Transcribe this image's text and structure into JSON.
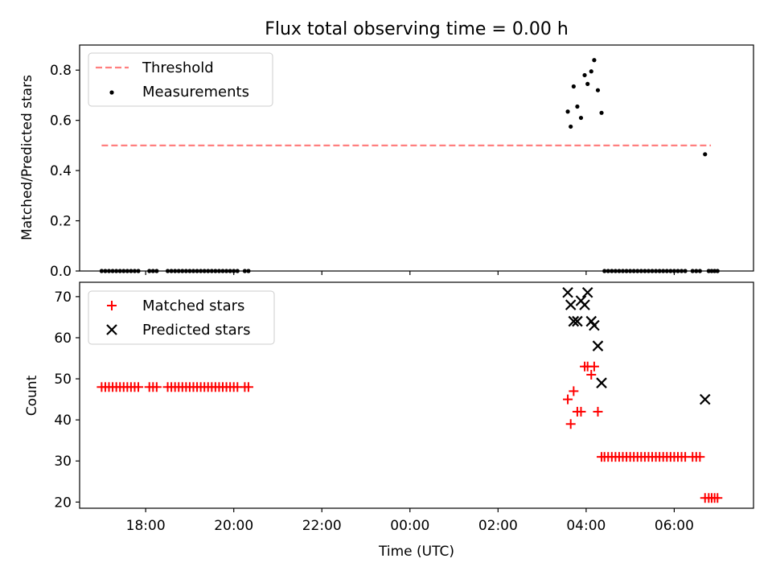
{
  "chart_data": [
    {
      "panel": "top",
      "type": "scatter",
      "title": "Flux total observing time = 0.00 h",
      "xlabel": "",
      "ylabel": "Matched/Predicted stars",
      "xlim": [
        "2024-01-01T16:30",
        "2024-01-02T07:48"
      ],
      "ylim": [
        0.0,
        0.9
      ],
      "yticks": [
        "0.0",
        "0.2",
        "0.4",
        "0.6",
        "0.8"
      ],
      "xticks": [],
      "legend": "upper-left",
      "grid": false,
      "series": [
        {
          "name": "Threshold",
          "kind": "dashed-line",
          "color": "#ff7f7f",
          "x": [
            "2024-01-01T17:00",
            "2024-01-02T06:50"
          ],
          "y": [
            0.5,
            0.5
          ]
        },
        {
          "name": "Measurements",
          "kind": "dots",
          "color": "#000000",
          "x": [
            "2024-01-01T17:00",
            "2024-01-01T17:05",
            "2024-01-01T17:10",
            "2024-01-01T17:15",
            "2024-01-01T17:20",
            "2024-01-01T17:25",
            "2024-01-01T17:30",
            "2024-01-01T17:35",
            "2024-01-01T17:40",
            "2024-01-01T17:45",
            "2024-01-01T17:50",
            "2024-01-01T18:05",
            "2024-01-01T18:10",
            "2024-01-01T18:15",
            "2024-01-01T18:30",
            "2024-01-01T18:35",
            "2024-01-01T18:40",
            "2024-01-01T18:45",
            "2024-01-01T18:50",
            "2024-01-01T18:55",
            "2024-01-01T19:00",
            "2024-01-01T19:05",
            "2024-01-01T19:10",
            "2024-01-01T19:15",
            "2024-01-01T19:20",
            "2024-01-01T19:25",
            "2024-01-01T19:30",
            "2024-01-01T19:35",
            "2024-01-01T19:40",
            "2024-01-01T19:45",
            "2024-01-01T19:50",
            "2024-01-01T19:55",
            "2024-01-01T20:00",
            "2024-01-01T20:05",
            "2024-01-01T20:15",
            "2024-01-01T20:20",
            "2024-01-02T03:35",
            "2024-01-02T03:39",
            "2024-01-02T03:43",
            "2024-01-02T03:48",
            "2024-01-02T03:53",
            "2024-01-02T03:58",
            "2024-01-02T04:02",
            "2024-01-02T04:07",
            "2024-01-02T04:11",
            "2024-01-02T04:16",
            "2024-01-02T04:21",
            "2024-01-02T04:25",
            "2024-01-02T04:30",
            "2024-01-02T04:35",
            "2024-01-02T04:40",
            "2024-01-02T04:45",
            "2024-01-02T04:50",
            "2024-01-02T04:55",
            "2024-01-02T05:00",
            "2024-01-02T05:05",
            "2024-01-02T05:10",
            "2024-01-02T05:15",
            "2024-01-02T05:20",
            "2024-01-02T05:25",
            "2024-01-02T05:30",
            "2024-01-02T05:35",
            "2024-01-02T05:40",
            "2024-01-02T05:45",
            "2024-01-02T05:50",
            "2024-01-02T05:55",
            "2024-01-02T06:00",
            "2024-01-02T06:05",
            "2024-01-02T06:10",
            "2024-01-02T06:15",
            "2024-01-02T06:25",
            "2024-01-02T06:30",
            "2024-01-02T06:35",
            "2024-01-02T06:42",
            "2024-01-02T06:47",
            "2024-01-02T06:51",
            "2024-01-02T06:55",
            "2024-01-02T06:59"
          ],
          "y": [
            0,
            0,
            0,
            0,
            0,
            0,
            0,
            0,
            0,
            0,
            0,
            0,
            0,
            0,
            0,
            0,
            0,
            0,
            0,
            0,
            0,
            0,
            0,
            0,
            0,
            0,
            0,
            0,
            0,
            0,
            0,
            0,
            0,
            0,
            0,
            0,
            0.635,
            0.575,
            0.735,
            0.655,
            0.61,
            0.78,
            0.745,
            0.795,
            0.84,
            0.72,
            0.63,
            0,
            0,
            0,
            0,
            0,
            0,
            0,
            0,
            0,
            0,
            0,
            0,
            0,
            0,
            0,
            0,
            0,
            0,
            0,
            0,
            0,
            0,
            0,
            0,
            0,
            0,
            0.465,
            0,
            0,
            0,
            0
          ]
        }
      ]
    },
    {
      "panel": "bottom",
      "type": "scatter",
      "title": "",
      "xlabel": "Time (UTC)",
      "ylabel": "Count",
      "xlim": [
        "2024-01-01T16:30",
        "2024-01-02T07:48"
      ],
      "ylim": [
        18.5,
        73.5
      ],
      "yticks": [
        "20",
        "30",
        "40",
        "50",
        "60",
        "70"
      ],
      "xticks": [
        "18:00",
        "20:00",
        "22:00",
        "00:00",
        "02:00",
        "04:00",
        "06:00"
      ],
      "legend": "upper-left",
      "grid": false,
      "series": [
        {
          "name": "Matched stars",
          "kind": "plus",
          "color": "#ff0000",
          "x": [
            "2024-01-01T17:00",
            "2024-01-01T17:05",
            "2024-01-01T17:10",
            "2024-01-01T17:15",
            "2024-01-01T17:20",
            "2024-01-01T17:25",
            "2024-01-01T17:30",
            "2024-01-01T17:35",
            "2024-01-01T17:40",
            "2024-01-01T17:45",
            "2024-01-01T17:50",
            "2024-01-01T18:05",
            "2024-01-01T18:10",
            "2024-01-01T18:15",
            "2024-01-01T18:30",
            "2024-01-01T18:35",
            "2024-01-01T18:40",
            "2024-01-01T18:45",
            "2024-01-01T18:50",
            "2024-01-01T18:55",
            "2024-01-01T19:00",
            "2024-01-01T19:05",
            "2024-01-01T19:10",
            "2024-01-01T19:15",
            "2024-01-01T19:20",
            "2024-01-01T19:25",
            "2024-01-01T19:30",
            "2024-01-01T19:35",
            "2024-01-01T19:40",
            "2024-01-01T19:45",
            "2024-01-01T19:50",
            "2024-01-01T19:55",
            "2024-01-01T20:00",
            "2024-01-01T20:05",
            "2024-01-01T20:15",
            "2024-01-01T20:20",
            "2024-01-02T03:35",
            "2024-01-02T03:39",
            "2024-01-02T03:43",
            "2024-01-02T03:48",
            "2024-01-02T03:53",
            "2024-01-02T03:58",
            "2024-01-02T04:02",
            "2024-01-02T04:07",
            "2024-01-02T04:11",
            "2024-01-02T04:16",
            "2024-01-02T04:21",
            "2024-01-02T04:25",
            "2024-01-02T04:30",
            "2024-01-02T04:35",
            "2024-01-02T04:40",
            "2024-01-02T04:45",
            "2024-01-02T04:50",
            "2024-01-02T04:55",
            "2024-01-02T05:00",
            "2024-01-02T05:05",
            "2024-01-02T05:10",
            "2024-01-02T05:15",
            "2024-01-02T05:20",
            "2024-01-02T05:25",
            "2024-01-02T05:30",
            "2024-01-02T05:35",
            "2024-01-02T05:40",
            "2024-01-02T05:45",
            "2024-01-02T05:50",
            "2024-01-02T05:55",
            "2024-01-02T06:00",
            "2024-01-02T06:05",
            "2024-01-02T06:10",
            "2024-01-02T06:15",
            "2024-01-02T06:25",
            "2024-01-02T06:30",
            "2024-01-02T06:35",
            "2024-01-02T06:42",
            "2024-01-02T06:47",
            "2024-01-02T06:51",
            "2024-01-02T06:55",
            "2024-01-02T06:59"
          ],
          "y": [
            48,
            48,
            48,
            48,
            48,
            48,
            48,
            48,
            48,
            48,
            48,
            48,
            48,
            48,
            48,
            48,
            48,
            48,
            48,
            48,
            48,
            48,
            48,
            48,
            48,
            48,
            48,
            48,
            48,
            48,
            48,
            48,
            48,
            48,
            48,
            48,
            45,
            39,
            47,
            42,
            42,
            53,
            53,
            51,
            53,
            42,
            31,
            31,
            31,
            31,
            31,
            31,
            31,
            31,
            31,
            31,
            31,
            31,
            31,
            31,
            31,
            31,
            31,
            31,
            31,
            31,
            31,
            31,
            31,
            31,
            31,
            31,
            31,
            21,
            21,
            21,
            21,
            21
          ]
        },
        {
          "name": "Predicted stars",
          "kind": "cross",
          "color": "#000000",
          "x": [
            "2024-01-02T03:35",
            "2024-01-02T03:39",
            "2024-01-02T03:43",
            "2024-01-02T03:48",
            "2024-01-02T03:53",
            "2024-01-02T03:58",
            "2024-01-02T04:02",
            "2024-01-02T04:07",
            "2024-01-02T04:11",
            "2024-01-02T04:16",
            "2024-01-02T04:21",
            "2024-01-02T06:42"
          ],
          "y": [
            71,
            68,
            64,
            64,
            69,
            68,
            71,
            64,
            63,
            58,
            49,
            45
          ]
        }
      ]
    }
  ]
}
